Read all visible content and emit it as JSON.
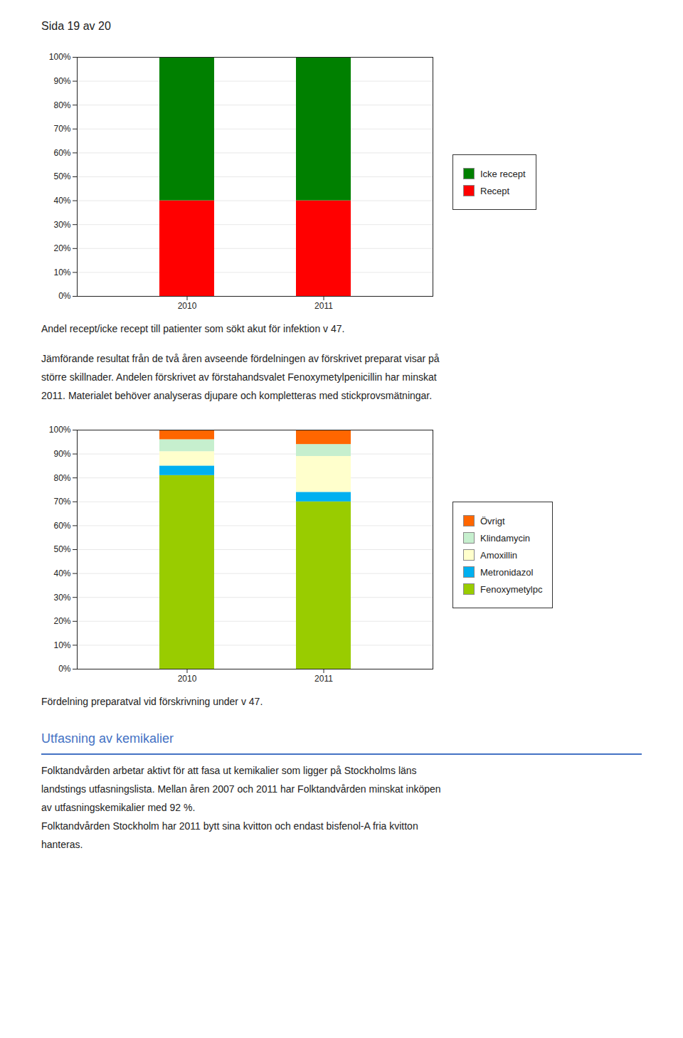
{
  "header": "Sida 19 av 20",
  "chart_data": [
    {
      "type": "bar",
      "stacked": true,
      "title": "Andel recept/icke recept till patienter som sökt akut för infektion v 47.",
      "categories": [
        "2010",
        "2011"
      ],
      "series": [
        {
          "name": "Recept",
          "color": "#FF0000",
          "values": [
            0.4,
            0.4
          ]
        },
        {
          "name": "Icke recept",
          "color": "#008000",
          "values": [
            0.6,
            0.6
          ]
        }
      ],
      "ylim": [
        0,
        1.0
      ],
      "yticks": [
        {
          "value": 0,
          "label": "0%"
        },
        {
          "value": 0.1,
          "label": "10%"
        },
        {
          "value": 0.2,
          "label": "20%"
        },
        {
          "value": 0.3,
          "label": "30%"
        },
        {
          "value": 0.4,
          "label": "40%"
        },
        {
          "value": 0.5,
          "label": "50%"
        },
        {
          "value": 0.6,
          "label": "60%"
        },
        {
          "value": 0.7,
          "label": "70%"
        },
        {
          "value": 0.8,
          "label": "80%"
        },
        {
          "value": 0.9,
          "label": "90%"
        },
        {
          "value": 1.0,
          "label": "100%"
        }
      ],
      "grid": true,
      "legend": "right"
    },
    {
      "type": "bar",
      "stacked": true,
      "title": "Fördelning preparatval vid förskrivning under v 47.",
      "categories": [
        "2010",
        "2011"
      ],
      "series": [
        {
          "name": "Fenoxymetylpc",
          "color": "#99CC00",
          "values": [
            0.81,
            0.7
          ]
        },
        {
          "name": "Metronidazol",
          "color": "#00B0F0",
          "values": [
            0.04,
            0.04
          ]
        },
        {
          "name": "Amoxillin",
          "color": "#FFFFCC",
          "values": [
            0.06,
            0.15
          ]
        },
        {
          "name": "Klindamycin",
          "color": "#C6EFCE",
          "values": [
            0.05,
            0.05
          ]
        },
        {
          "name": "Övrigt",
          "color": "#FF6600",
          "values": [
            0.04,
            0.06
          ]
        }
      ],
      "ylim": [
        0,
        1.0
      ],
      "yticks": [
        {
          "value": 0,
          "label": "0%"
        },
        {
          "value": 0.1,
          "label": "10%"
        },
        {
          "value": 0.2,
          "label": "20%"
        },
        {
          "value": 0.3,
          "label": "30%"
        },
        {
          "value": 0.4,
          "label": "40%"
        },
        {
          "value": 0.5,
          "label": "50%"
        },
        {
          "value": 0.6,
          "label": "60%"
        },
        {
          "value": 0.7,
          "label": "70%"
        },
        {
          "value": 0.8,
          "label": "80%"
        },
        {
          "value": 0.9,
          "label": "90%"
        },
        {
          "value": 1.0,
          "label": "100%"
        }
      ],
      "grid": true,
      "legend": "right"
    }
  ],
  "paragraph": [
    "Jämförande resultat från de två åren avseende fördelningen av förskrivet preparat visar på",
    "större skillnader. Andelen förskrivet av förstahandsvalet Fenoxymetylpenicillin har minskat",
    "2011. Materialet behöver analyseras djupare och kompletteras med stickprovsmätningar."
  ],
  "section": {
    "title": "Utfasning av kemikalier",
    "color": "#4472C4",
    "lines": [
      "Folktandvården arbetar aktivt för att fasa ut kemikalier som ligger på Stockholms läns",
      "landstings utfasningslista.  Mellan åren 2007 och 2011 har Folktandvården minskat inköpen",
      "av utfasningskemikalier med 92 %.",
      "Folktandvården Stockholm har 2011 bytt sina kvitton och endast bisfenol-A fria kvitton",
      "hanteras."
    ]
  }
}
